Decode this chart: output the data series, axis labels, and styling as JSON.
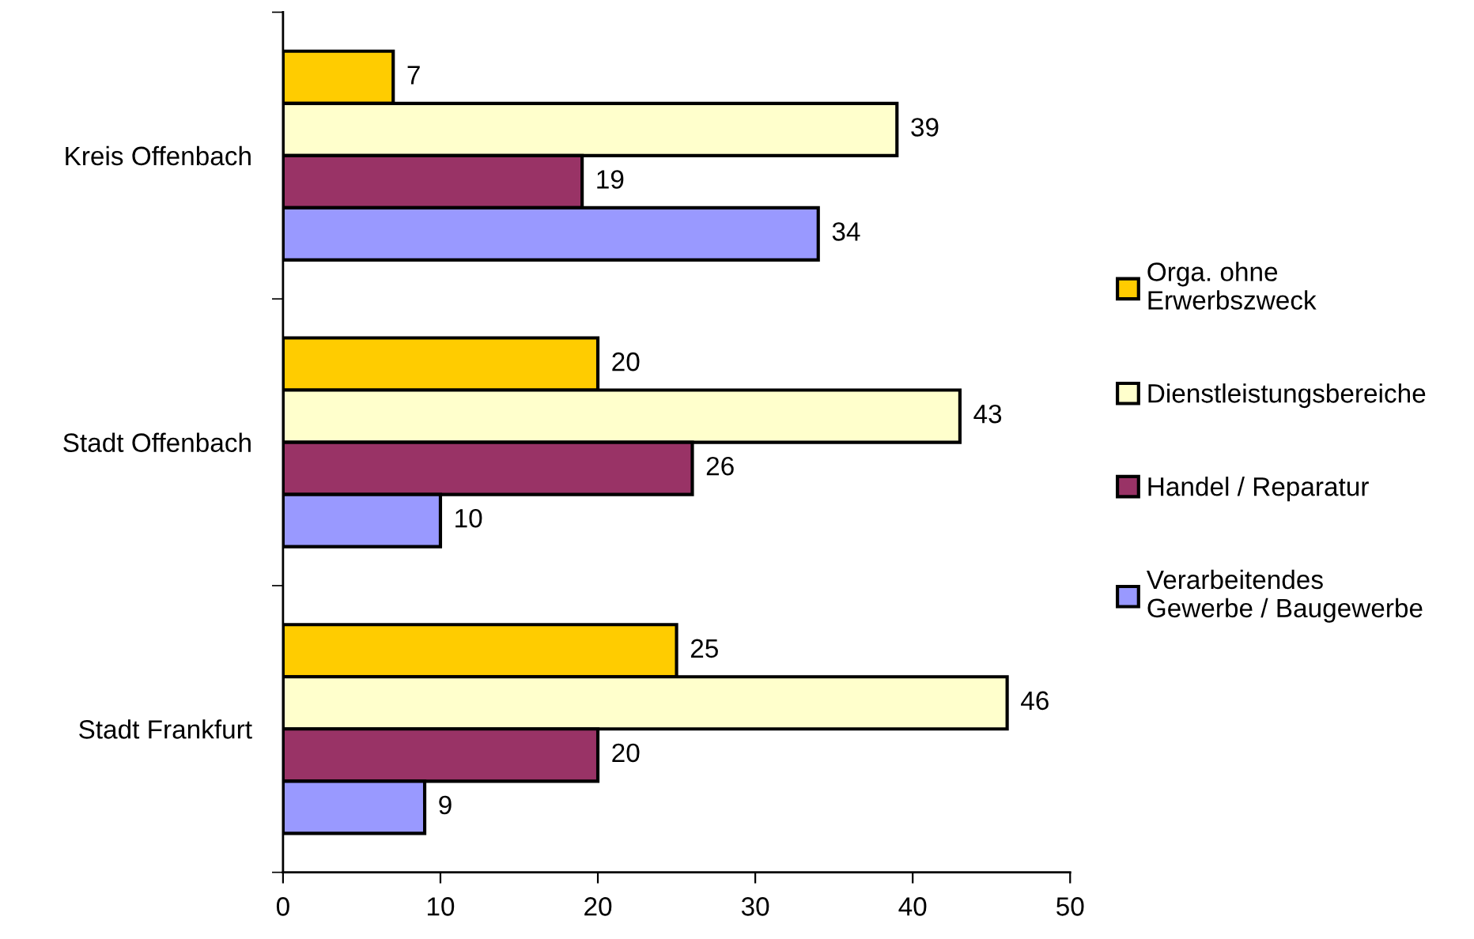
{
  "chart_data": {
    "type": "bar",
    "orientation": "horizontal",
    "categories": [
      "Kreis Offenbach",
      "Stadt Offenbach",
      "Stadt Frankfurt"
    ],
    "series": [
      {
        "name": "Orga. ohne\nErwerbszweck",
        "color": "#ffcc00",
        "values": [
          7,
          20,
          25
        ]
      },
      {
        "name": "Dienstleistungsbereiche",
        "color": "#ffffcc",
        "values": [
          39,
          43,
          46
        ]
      },
      {
        "name": "Handel / Reparatur",
        "color": "#993366",
        "values": [
          19,
          26,
          20
        ]
      },
      {
        "name": "Verarbeitendes\nGewerbe / Baugewerbe",
        "color": "#9999ff",
        "values": [
          34,
          10,
          9
        ]
      }
    ],
    "xlim": [
      0,
      50
    ],
    "xticks": [
      0,
      10,
      20,
      30,
      40,
      50
    ],
    "data_labels": true,
    "legend": "right"
  }
}
